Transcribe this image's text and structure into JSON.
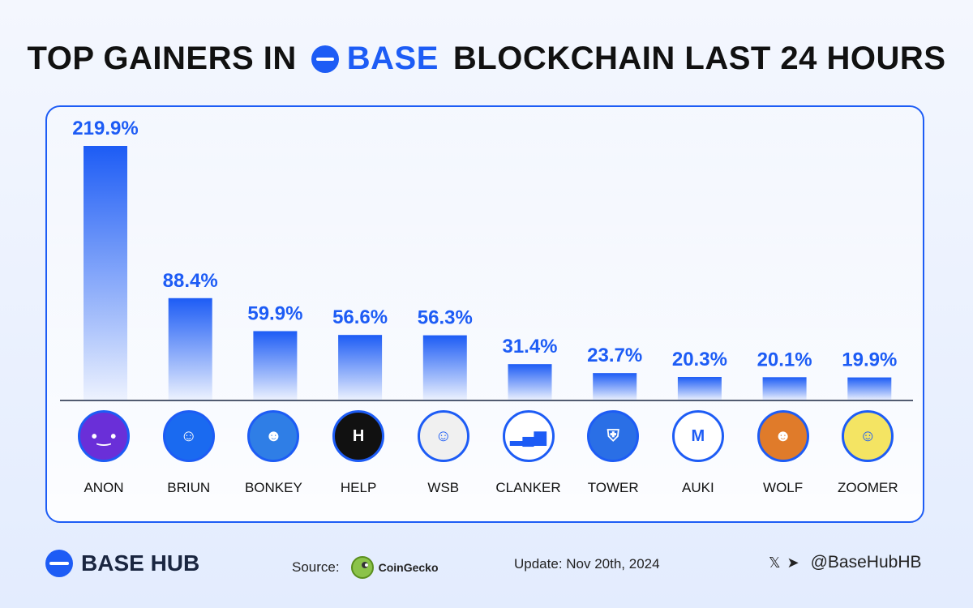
{
  "title": {
    "prefix": "TOP GAINERS IN",
    "brand": "BASE",
    "suffix": "BLOCKCHAIN LAST 24 HOURS"
  },
  "chart_data": {
    "type": "bar",
    "categories": [
      "ANON",
      "BRIUN",
      "BONKEY",
      "HELP",
      "WSB",
      "CLANKER",
      "TOWER",
      "AUKI",
      "WOLF",
      "ZOOMER"
    ],
    "values": [
      219.9,
      88.4,
      59.9,
      56.6,
      56.3,
      31.4,
      23.7,
      20.3,
      20.1,
      19.9
    ],
    "value_labels": [
      "219.9%",
      "88.4%",
      "59.9%",
      "56.6%",
      "56.3%",
      "31.4%",
      "23.7%",
      "20.3%",
      "20.1%",
      "19.9%"
    ],
    "unit": "%",
    "bar_color": "#1d5cf5",
    "label_color": "#1d5cf5"
  },
  "coins": [
    {
      "name": "ANON",
      "icon": "anon-robot-icon",
      "color": "#6a2fd8",
      "glyph": "•‿•"
    },
    {
      "name": "BRIUN",
      "icon": "briun-character-icon",
      "color": "#1a6af0",
      "glyph": "☺"
    },
    {
      "name": "BONKEY",
      "icon": "bonkey-monkey-icon",
      "color": "#2f7ee6",
      "glyph": "☻"
    },
    {
      "name": "HELP",
      "icon": "help-logo-icon",
      "color": "#111111",
      "glyph": "H"
    },
    {
      "name": "WSB",
      "icon": "wsb-mascot-icon",
      "color": "#f0f0f0",
      "glyph": "☺"
    },
    {
      "name": "CLANKER",
      "icon": "clanker-bars-icon",
      "color": "#ffffff",
      "glyph": "▂▄▆"
    },
    {
      "name": "TOWER",
      "icon": "tower-shield-icon",
      "color": "#2a6fe6",
      "glyph": "⛨"
    },
    {
      "name": "AUKI",
      "icon": "auki-logo-icon",
      "color": "#ffffff",
      "glyph": "M"
    },
    {
      "name": "WOLF",
      "icon": "wolf-character-icon",
      "color": "#e07b2a",
      "glyph": "☻"
    },
    {
      "name": "ZOOMER",
      "icon": "zoomer-face-icon",
      "color": "#f4e463",
      "glyph": "☺"
    }
  ],
  "footer": {
    "brand": "BASE HUB",
    "source_label": "Source:",
    "source_name": "CoinGecko",
    "update": "Update: Nov 20th, 2024",
    "social_x": "𝕏",
    "social_telegram": "➤",
    "handle": "@BaseHubHB"
  },
  "colors": {
    "accent": "#1d5cf5",
    "background_top": "#f4f7fe",
    "background_bottom": "#e3ecfe"
  }
}
